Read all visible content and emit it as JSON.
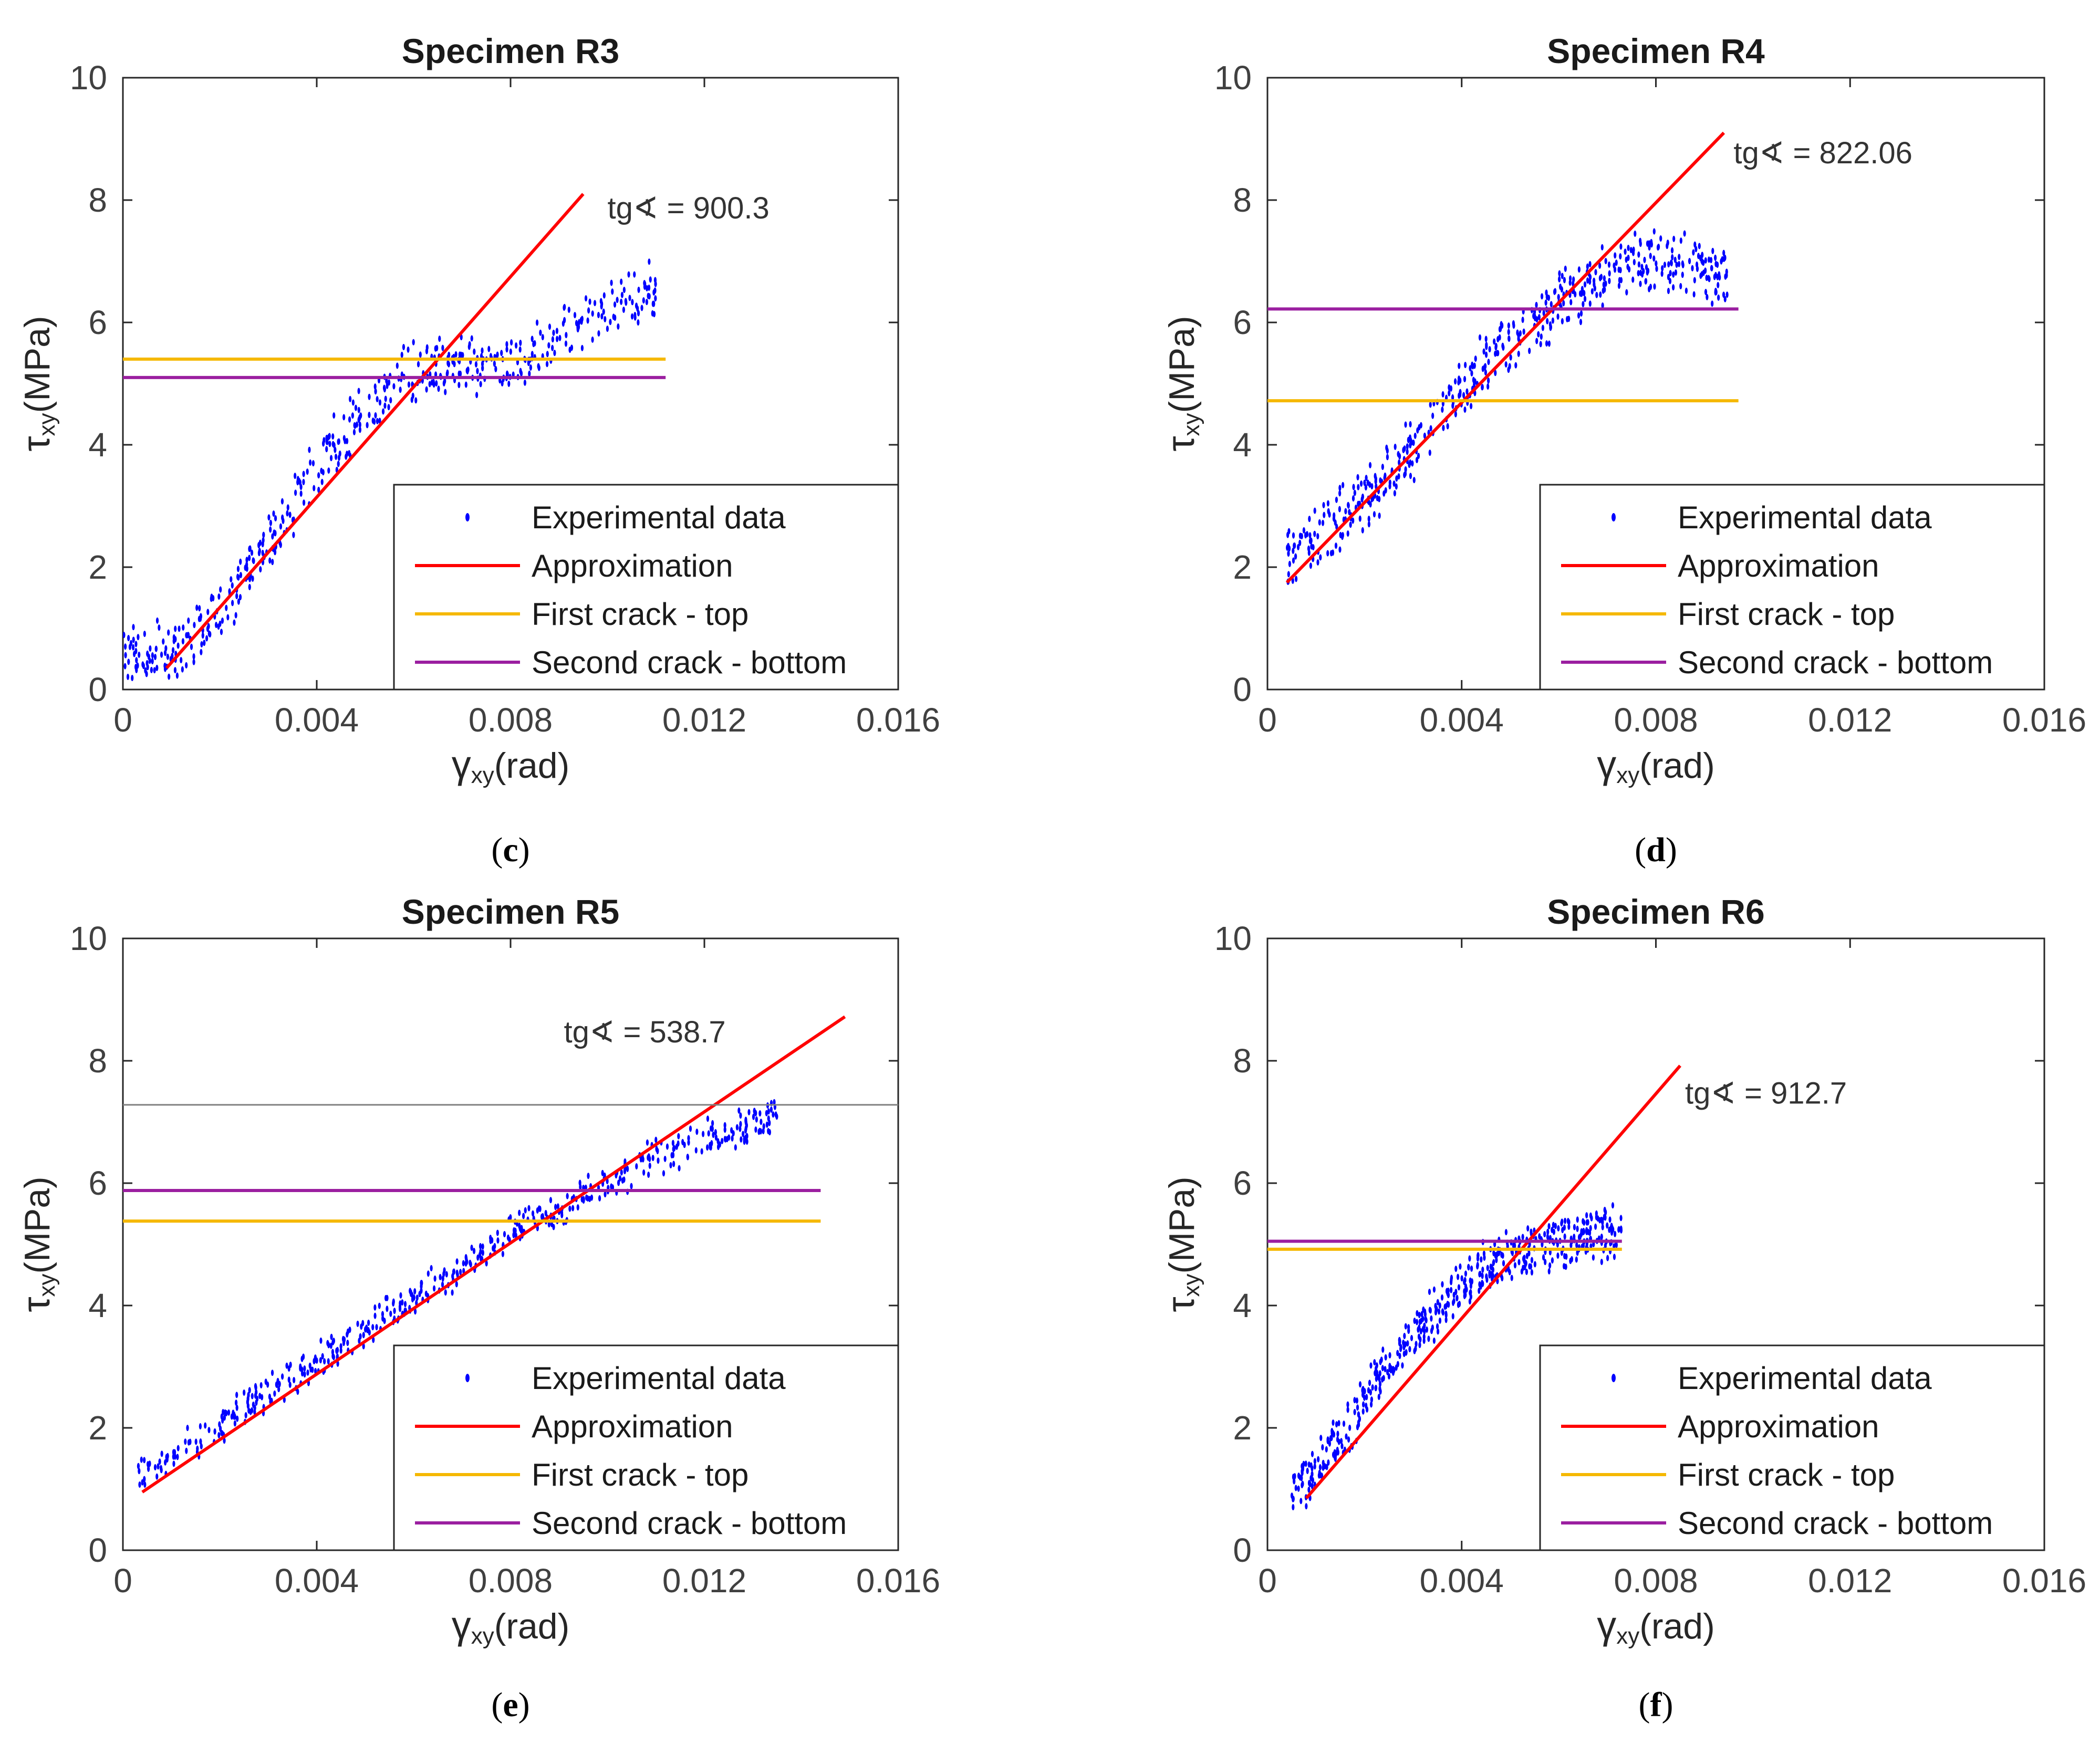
{
  "chart_data": [
    {
      "type": "scatter",
      "title": "Specimen R3",
      "xlabel_main": "γ",
      "xlabel_sub": "xy",
      "xlabel_unit": "(rad)",
      "ylabel_main": "τ",
      "ylabel_sub": "xy",
      "ylabel_unit": "(MPa)",
      "xlim": [
        0,
        0.016
      ],
      "ylim": [
        0,
        10
      ],
      "x_ticks": [
        0,
        0.004,
        0.008,
        0.012,
        0.016
      ],
      "x_tick_labels": [
        "0",
        "0.004",
        "0.008",
        "0.012",
        "0.016"
      ],
      "y_ticks": [
        0,
        2,
        4,
        6,
        8,
        10
      ],
      "y_tick_labels": [
        "0",
        "2",
        "4",
        "6",
        "8",
        "10"
      ],
      "annotation": "tg∢ = 900.3",
      "annotation_at": [
        0.01,
        7.7
      ],
      "caption": "c",
      "legend": [
        "Experimental data",
        "Approximation",
        "First crack - top",
        "Second crack - bottom"
      ],
      "series": [
        {
          "name": "Experimental data",
          "kind": "points",
          "color": "#0000ff",
          "x": [
            0.0,
            0.0005,
            0.001,
            0.0015,
            0.002,
            0.0025,
            0.003,
            0.0035,
            0.004,
            0.0045,
            0.005,
            0.0055,
            0.006,
            0.0065,
            0.007,
            0.0075,
            0.008,
            0.0085,
            0.009,
            0.0095,
            0.01,
            0.0105,
            0.011
          ],
          "y": [
            0.6,
            0.6,
            0.6,
            0.9,
            1.3,
            1.8,
            2.4,
            3.0,
            3.6,
            4.1,
            4.6,
            5.0,
            5.2,
            5.3,
            5.3,
            5.3,
            5.4,
            5.5,
            5.8,
            6.1,
            6.3,
            6.4,
            6.5
          ],
          "spread": 0.55
        },
        {
          "name": "Approximation",
          "kind": "line",
          "color": "#ff0000",
          "x": [
            0.0009,
            0.0095
          ],
          "y": [
            0.35,
            8.1
          ]
        },
        {
          "name": "First crack - top",
          "kind": "line",
          "color": "#f5b800",
          "x": [
            0.0,
            0.0112
          ],
          "y": [
            5.4,
            5.4
          ]
        },
        {
          "name": "Second crack - bottom",
          "kind": "line",
          "color": "#9b1fa0",
          "x": [
            0.0,
            0.0112
          ],
          "y": [
            5.1,
            5.1
          ]
        }
      ]
    },
    {
      "type": "scatter",
      "title": "Specimen R4",
      "xlabel_main": "γ",
      "xlabel_sub": "xy",
      "xlabel_unit": "(rad)",
      "ylabel_main": "τ",
      "ylabel_sub": "xy",
      "ylabel_unit": "(MPa)",
      "xlim": [
        0,
        0.016
      ],
      "ylim": [
        0,
        10
      ],
      "x_ticks": [
        0,
        0.004,
        0.008,
        0.012,
        0.016
      ],
      "x_tick_labels": [
        "0",
        "0.004",
        "0.008",
        "0.012",
        "0.016"
      ],
      "y_ticks": [
        0,
        2,
        4,
        6,
        8,
        10
      ],
      "y_tick_labels": [
        "0",
        "2",
        "4",
        "6",
        "8",
        "10"
      ],
      "annotation": "tg∢ = 822.06",
      "annotation_at": [
        0.0096,
        8.6
      ],
      "caption": "d",
      "legend": [
        "Experimental data",
        "Approximation",
        "First crack - top",
        "Second crack - bottom"
      ],
      "series": [
        {
          "name": "Experimental data",
          "kind": "points",
          "color": "#0000ff",
          "x": [
            0.0004,
            0.001,
            0.0015,
            0.002,
            0.0025,
            0.003,
            0.0035,
            0.004,
            0.0045,
            0.005,
            0.0055,
            0.006,
            0.0065,
            0.007,
            0.0075,
            0.008,
            0.0085,
            0.009,
            0.0095
          ],
          "y": [
            2.2,
            2.5,
            2.8,
            3.1,
            3.5,
            3.9,
            4.4,
            4.9,
            5.3,
            5.7,
            6.0,
            6.3,
            6.5,
            6.8,
            7.0,
            7.0,
            6.9,
            6.8,
            6.8
          ],
          "spread": 0.6
        },
        {
          "name": "Approximation",
          "kind": "line",
          "color": "#ff0000",
          "x": [
            0.0004,
            0.0094
          ],
          "y": [
            1.75,
            9.1
          ]
        },
        {
          "name": "First crack - top",
          "kind": "line",
          "color": "#f5b800",
          "x": [
            0.0,
            0.0097
          ],
          "y": [
            4.72,
            4.72
          ]
        },
        {
          "name": "Second crack - bottom",
          "kind": "line",
          "color": "#9b1fa0",
          "x": [
            0.0,
            0.0097
          ],
          "y": [
            6.22,
            6.22
          ]
        }
      ]
    },
    {
      "type": "scatter",
      "title": "Specimen R5",
      "xlabel_main": "γ",
      "xlabel_sub": "xy",
      "xlabel_unit": "(rad)",
      "ylabel_main": "τ",
      "ylabel_sub": "xy",
      "ylabel_unit": "(MPa)",
      "xlim": [
        0,
        0.016
      ],
      "ylim": [
        0,
        10
      ],
      "x_ticks": [
        0,
        0.004,
        0.008,
        0.012,
        0.016
      ],
      "x_tick_labels": [
        "0",
        "0.004",
        "0.008",
        "0.012",
        "0.016"
      ],
      "y_ticks": [
        0,
        2,
        4,
        6,
        8,
        10
      ],
      "y_tick_labels": [
        "0",
        "2",
        "4",
        "6",
        "8",
        "10"
      ],
      "annotation": "tg∢ = 538.7",
      "annotation_at": [
        0.0091,
        8.3
      ],
      "caption": "e",
      "legend": [
        "Experimental data",
        "Approximation",
        "First crack - top",
        "Second crack - bottom"
      ],
      "series": [
        {
          "name": "Experimental data",
          "kind": "points",
          "color": "#0000ff",
          "x": [
            0.0003,
            0.001,
            0.002,
            0.003,
            0.004,
            0.005,
            0.006,
            0.007,
            0.008,
            0.009,
            0.0095,
            0.01,
            0.011,
            0.012,
            0.013,
            0.0135
          ],
          "y": [
            1.2,
            1.5,
            2.0,
            2.6,
            3.1,
            3.6,
            4.1,
            4.6,
            5.2,
            5.6,
            5.8,
            6.0,
            6.4,
            6.7,
            7.0,
            7.1
          ],
          "spread": 0.35
        },
        {
          "name": "Approximation",
          "kind": "line",
          "color": "#ff0000",
          "x": [
            0.0004,
            0.0149
          ],
          "y": [
            0.95,
            8.72
          ]
        },
        {
          "name": "First crack - top",
          "kind": "line",
          "color": "#f5b800",
          "x": [
            0.0,
            0.0144
          ],
          "y": [
            5.38,
            5.38
          ]
        },
        {
          "name": "Second crack - bottom",
          "kind": "line",
          "color": "#9b1fa0",
          "x": [
            0.0,
            0.0144
          ],
          "y": [
            5.88,
            5.88
          ]
        },
        {
          "kind": "hline",
          "color": "#808080",
          "x": [
            0.0,
            0.016
          ],
          "y": [
            7.28,
            7.28
          ]
        }
      ]
    },
    {
      "type": "scatter",
      "title": "Specimen R6",
      "xlabel_main": "γ",
      "xlabel_sub": "xy",
      "xlabel_unit": "(rad)",
      "ylabel_main": "τ",
      "ylabel_sub": "xy",
      "ylabel_unit": "(MPa)",
      "xlim": [
        0,
        0.016
      ],
      "ylim": [
        0,
        10
      ],
      "x_ticks": [
        0,
        0.004,
        0.008,
        0.012,
        0.016
      ],
      "x_tick_labels": [
        "0",
        "0.004",
        "0.008",
        "0.012",
        "0.016"
      ],
      "y_ticks": [
        0,
        2,
        4,
        6,
        8,
        10
      ],
      "y_tick_labels": [
        "0",
        "2",
        "4",
        "6",
        "8",
        "10"
      ],
      "annotation": "tg∢ = 912.7",
      "annotation_at": [
        0.0086,
        7.3
      ],
      "caption": "f",
      "legend": [
        "Experimental data",
        "Approximation",
        "First crack - top",
        "Second crack - bottom"
      ],
      "series": [
        {
          "name": "Experimental data",
          "kind": "points",
          "color": "#0000ff",
          "x": [
            0.0005,
            0.001,
            0.0015,
            0.002,
            0.0025,
            0.003,
            0.0035,
            0.004,
            0.0045,
            0.005,
            0.0055,
            0.006,
            0.0065,
            0.007,
            0.0073
          ],
          "y": [
            1.0,
            1.3,
            1.8,
            2.4,
            3.0,
            3.5,
            3.9,
            4.3,
            4.6,
            4.8,
            4.9,
            5.0,
            5.1,
            5.2,
            5.2
          ],
          "spread": 0.5
        },
        {
          "name": "Approximation",
          "kind": "line",
          "color": "#ff0000",
          "x": [
            0.0008,
            0.0085
          ],
          "y": [
            0.85,
            7.92
          ]
        },
        {
          "name": "First crack - top",
          "kind": "line",
          "color": "#f5b800",
          "x": [
            0.0,
            0.0073
          ],
          "y": [
            4.92,
            4.92
          ]
        },
        {
          "name": "Second crack - bottom",
          "kind": "line",
          "color": "#9b1fa0",
          "x": [
            0.0,
            0.0073
          ],
          "y": [
            5.05,
            5.05
          ]
        }
      ]
    }
  ]
}
